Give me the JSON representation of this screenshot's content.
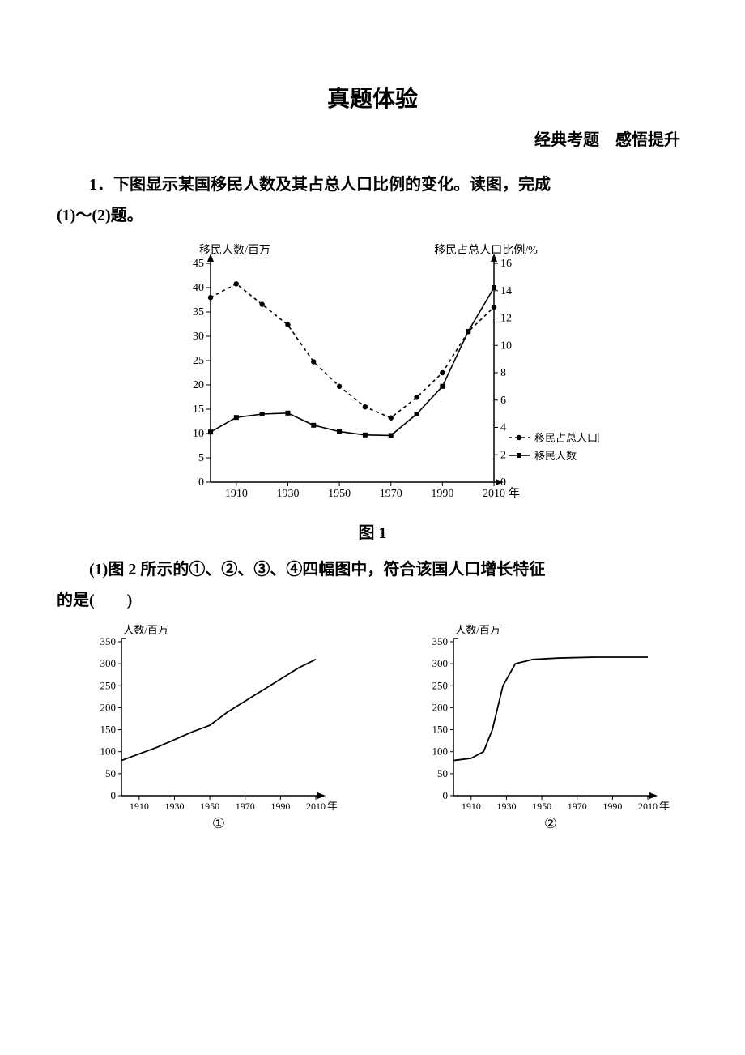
{
  "title": "真题体验",
  "subtitle": "经典考题　感悟提升",
  "question_intro": "1．下图显示某国移民人数及其占总人口比例的变化。读图，完成",
  "question_intro_line2": "(1)～(2)题。",
  "chart1_caption": "图 1",
  "subq1_a": "(1)图 2 所示的①、②、③、④四幅图中，符合该国人口增长特征",
  "subq1_b": "的是(　　)",
  "chart1": {
    "type": "dual-axis-line",
    "left_axis_label": "移民人数/百万",
    "right_axis_label": "移民占总人口比例/%",
    "x_axis_label_suffix": "年",
    "left_ylim": [
      0,
      45
    ],
    "left_ytick_step": 5,
    "right_ylim": [
      0,
      16
    ],
    "right_ytick_step": 2,
    "x_ticks": [
      1910,
      1930,
      1950,
      1970,
      1990,
      2010
    ],
    "x_range": [
      1900,
      2010
    ],
    "series_pct": {
      "label": "移民占总人口比例",
      "marker": "circle",
      "dash": "4,4",
      "color": "#000000",
      "data": [
        [
          1900,
          13.5
        ],
        [
          1910,
          14.5
        ],
        [
          1920,
          13.0
        ],
        [
          1930,
          11.5
        ],
        [
          1940,
          8.8
        ],
        [
          1950,
          7.0
        ],
        [
          1960,
          5.5
        ],
        [
          1970,
          4.7
        ],
        [
          1980,
          6.2
        ],
        [
          1990,
          8.0
        ],
        [
          2000,
          11.0
        ],
        [
          2010,
          12.8
        ]
      ]
    },
    "series_num": {
      "label": "移民人数",
      "marker": "square",
      "dash": "none",
      "color": "#000000",
      "data": [
        [
          1900,
          10.3
        ],
        [
          1910,
          13.3
        ],
        [
          1920,
          14.0
        ],
        [
          1930,
          14.2
        ],
        [
          1940,
          11.7
        ],
        [
          1950,
          10.4
        ],
        [
          1960,
          9.7
        ],
        [
          1970,
          9.6
        ],
        [
          1980,
          14.0
        ],
        [
          1990,
          19.7
        ],
        [
          2000,
          31.0
        ],
        [
          2010,
          40.0
        ]
      ]
    },
    "font_size_axis": 14
  },
  "small_charts": {
    "ylabel": "人数/百万",
    "ylim": [
      0,
      350
    ],
    "ytick_step": 50,
    "x_ticks": [
      1910,
      1930,
      1950,
      1970,
      1990,
      2010
    ],
    "x_range": [
      1900,
      2010
    ],
    "x_suffix": "年",
    "color": "#000000",
    "font_size_axis": 13,
    "chart_a": {
      "label": "①",
      "data": [
        [
          1900,
          80
        ],
        [
          1920,
          110
        ],
        [
          1940,
          145
        ],
        [
          1950,
          160
        ],
        [
          1960,
          190
        ],
        [
          1970,
          215
        ],
        [
          1980,
          240
        ],
        [
          1990,
          265
        ],
        [
          2000,
          290
        ],
        [
          2010,
          310
        ]
      ]
    },
    "chart_b": {
      "label": "②",
      "data": [
        [
          1900,
          80
        ],
        [
          1910,
          85
        ],
        [
          1917,
          100
        ],
        [
          1922,
          150
        ],
        [
          1928,
          250
        ],
        [
          1935,
          300
        ],
        [
          1945,
          310
        ],
        [
          1960,
          313
        ],
        [
          1980,
          315
        ],
        [
          2000,
          315
        ],
        [
          2010,
          315
        ]
      ]
    }
  }
}
